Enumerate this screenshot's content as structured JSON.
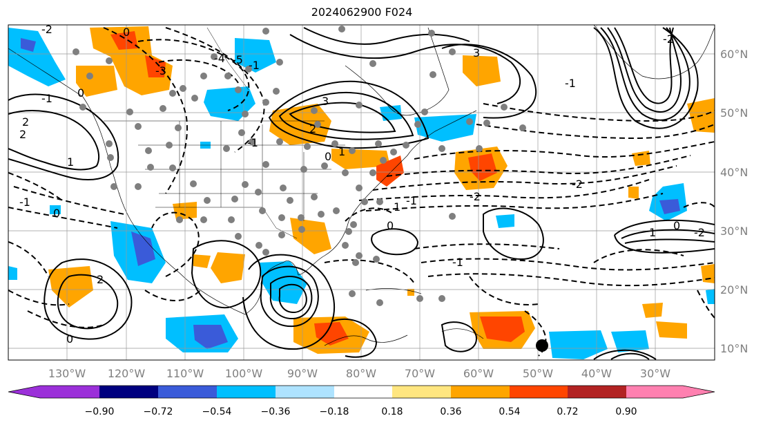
{
  "title": "2024062900 F024",
  "longitude_labels": [
    "130°W",
    "120°W",
    "110°W",
    "100°W",
    "90°W",
    "80°W",
    "70°W",
    "60°W",
    "50°W",
    "40°W",
    "30°W"
  ],
  "latitude_labels": [
    "60°N",
    "50°N",
    "40°N",
    "30°N",
    "20°N",
    "10°N"
  ],
  "contour_labels": [
    "-2",
    "0",
    "-3",
    "-4",
    "-5",
    "-1",
    "-1",
    "3",
    "3",
    "2",
    "1",
    "0",
    "-2",
    "-1",
    "0",
    "-1",
    "2",
    "1",
    "2",
    "0",
    "-1",
    "-2",
    "1",
    "-1",
    "-2",
    "0",
    "1",
    "-2",
    "-1",
    "0",
    "2",
    "0"
  ],
  "colorbar": {
    "colors": [
      "#9b30d9",
      "#00007f",
      "#3a5bd9",
      "#00bfff",
      "#aee3ff",
      "#ffffff",
      "#ffe680",
      "#ffa500",
      "#ff4500",
      "#b22222",
      "#ff80b0"
    ],
    "tick_labels": [
      "−0.90",
      "−0.72",
      "−0.54",
      "−0.36",
      "−0.18",
      "0.18",
      "0.36",
      "0.54",
      "0.72",
      "0.90"
    ]
  }
}
